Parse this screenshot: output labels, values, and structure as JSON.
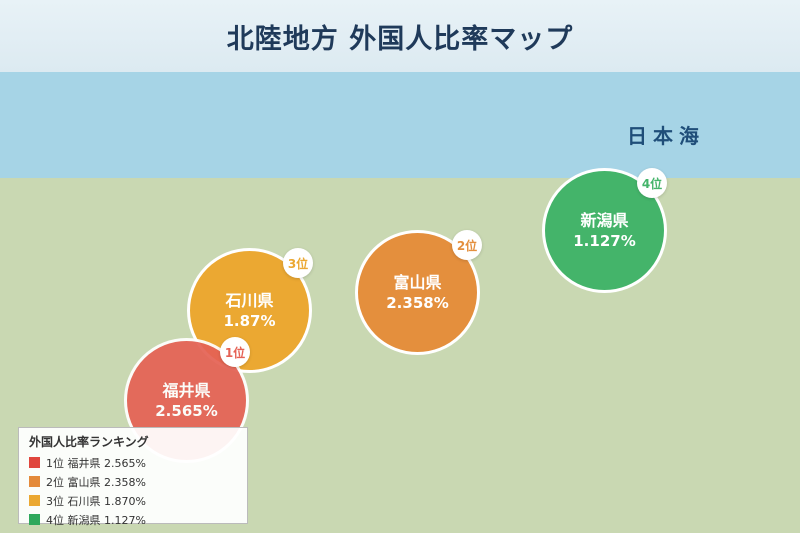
{
  "title": "北陸地方 外国人比率マップ",
  "sea_label": "日本海",
  "prefectures": [
    {
      "name": "福井県",
      "value": "2.565%",
      "rank": "1位",
      "color": "#e56255"
    },
    {
      "name": "富山県",
      "value": "2.358%",
      "rank": "2位",
      "color": "#e48f3d"
    },
    {
      "name": "石川県",
      "value": "1.87%",
      "rank": "3位",
      "color": "#eba832"
    },
    {
      "name": "新潟県",
      "value": "1.127%",
      "rank": "4位",
      "color": "#44b46a"
    }
  ],
  "legend": {
    "title": "外国人比率ランキング",
    "items": [
      {
        "text": "1位 福井県 2.565%",
        "color": "#e0463d"
      },
      {
        "text": "2位 富山県 2.358%",
        "color": "#e48a3a"
      },
      {
        "text": "3位 石川県 1.870%",
        "color": "#eba832"
      },
      {
        "text": "4位 新潟県 1.127%",
        "color": "#2fa85c"
      }
    ]
  }
}
